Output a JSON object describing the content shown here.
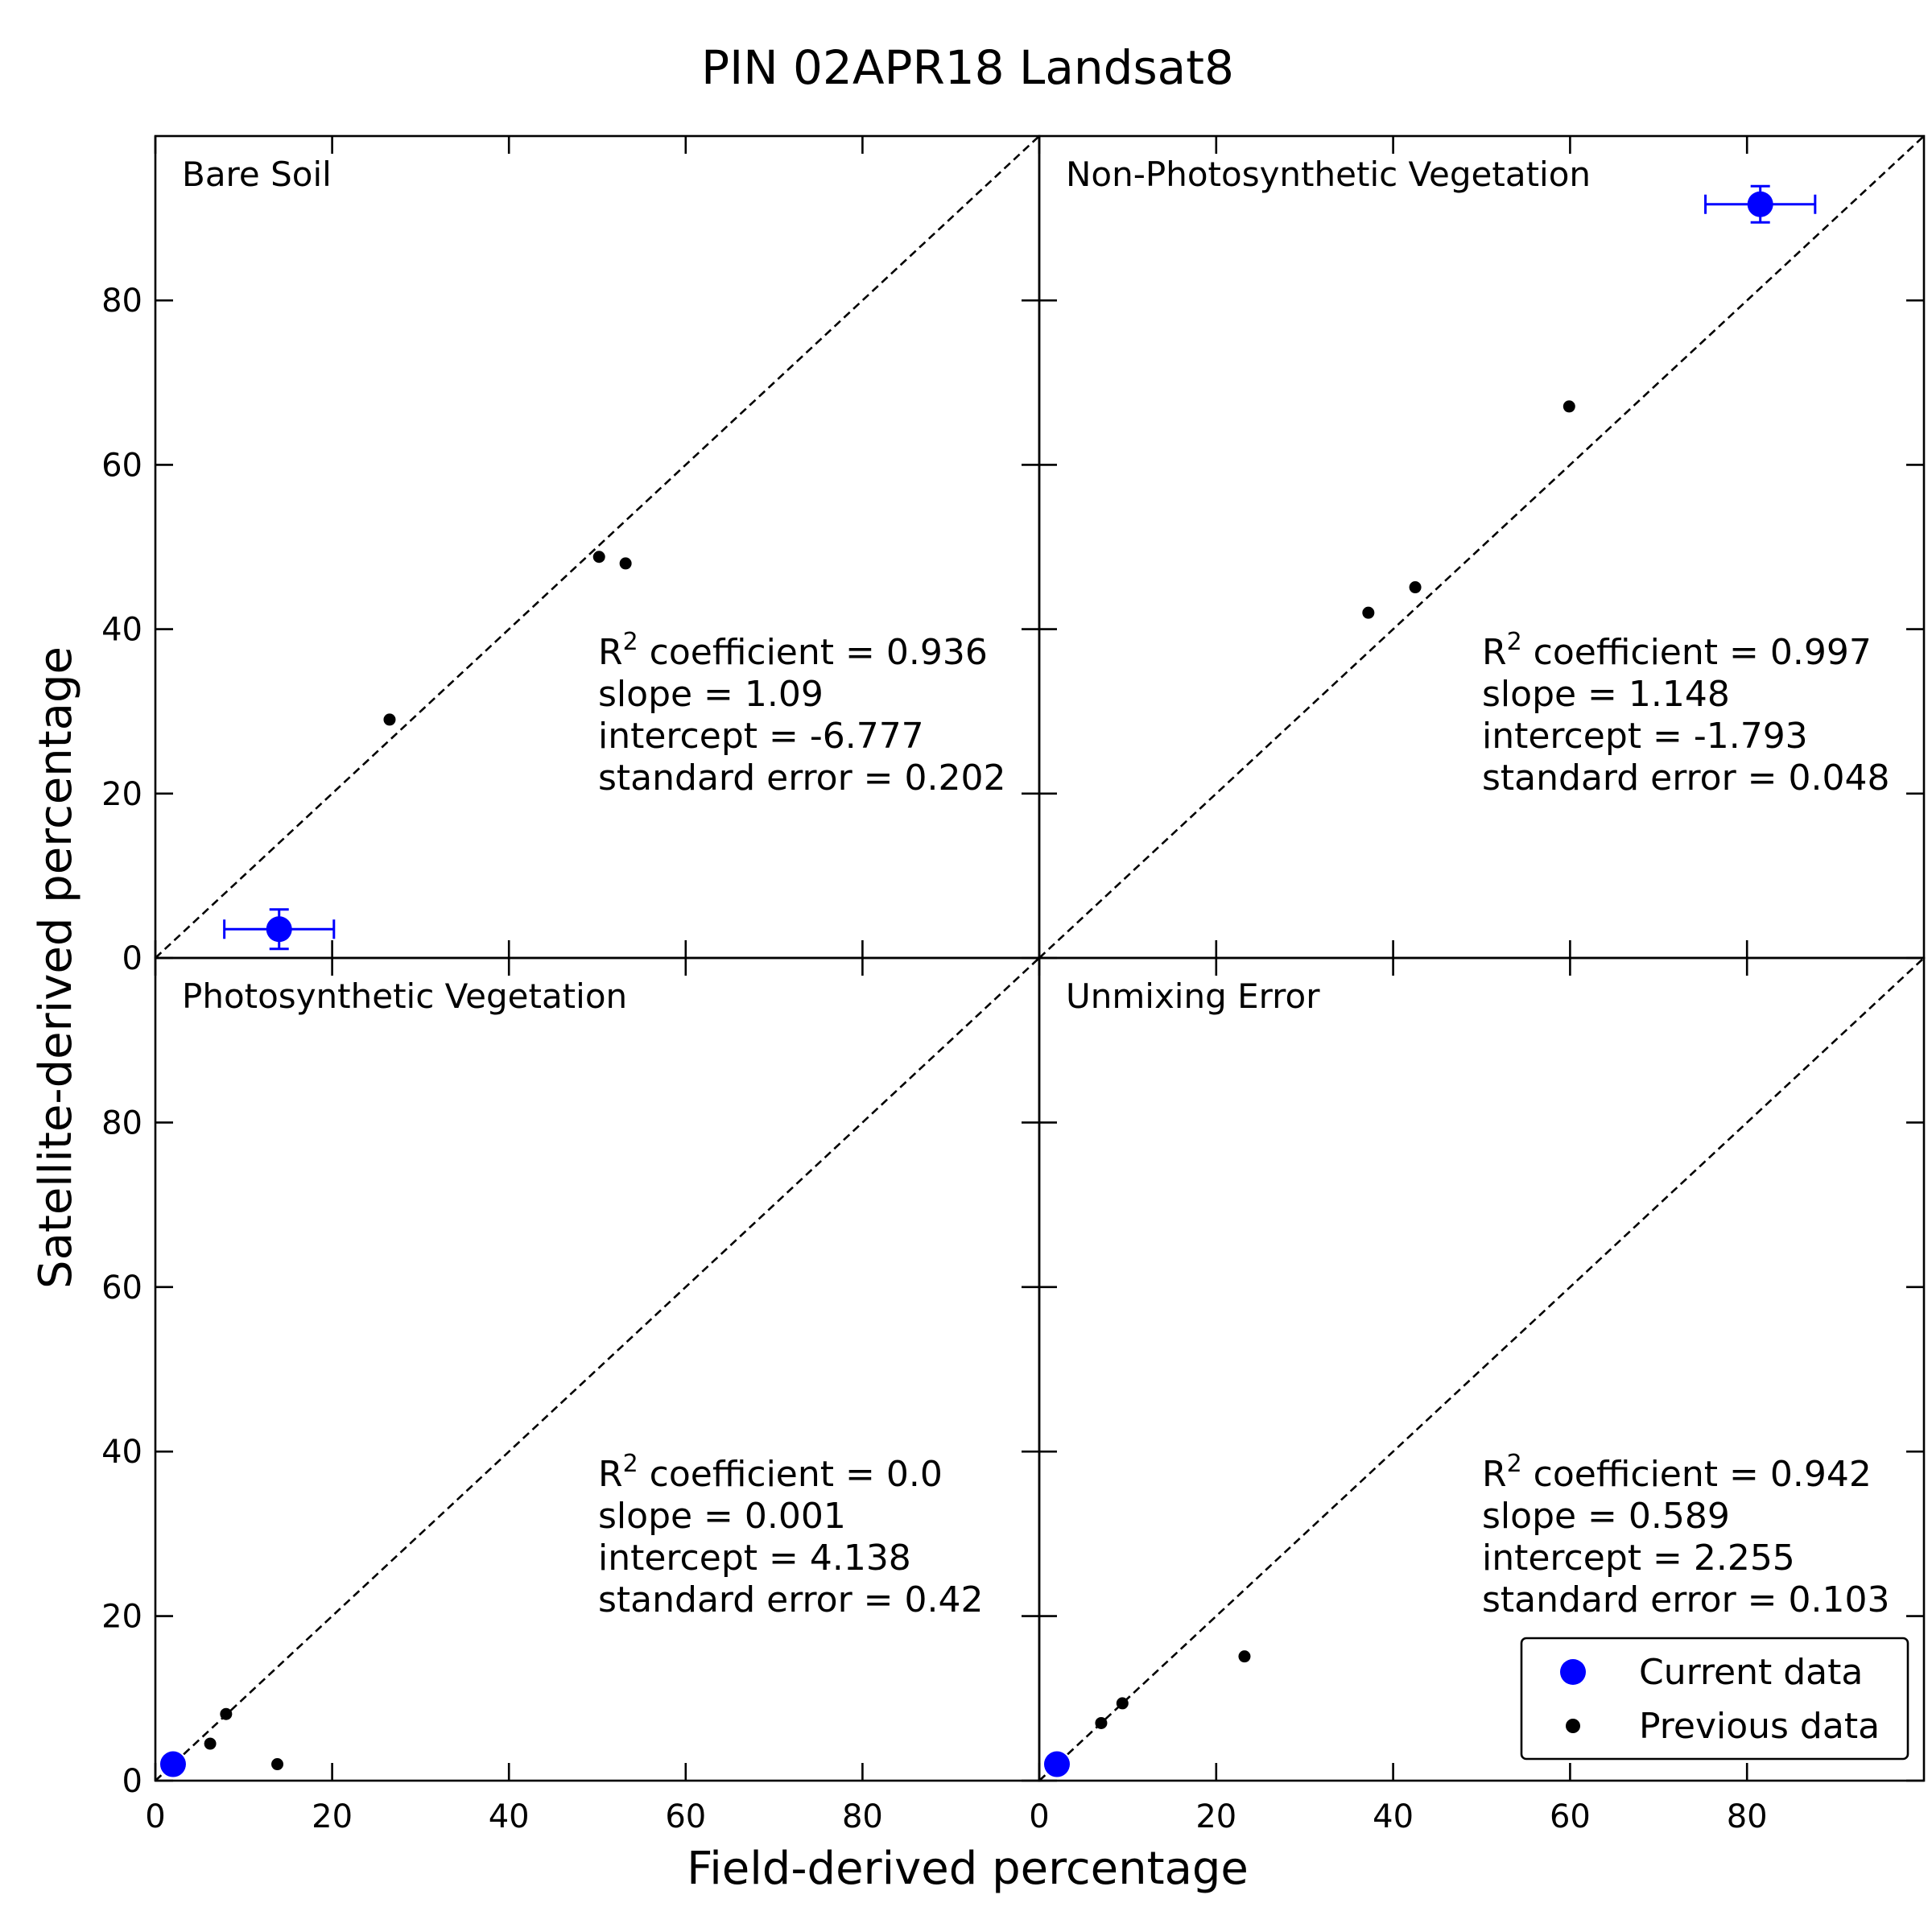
{
  "chart_data": {
    "type": "scatter",
    "title": "PIN  02APR18  Landsat8",
    "xlabel": "Field-derived percentage",
    "ylabel": "Satellite-derived percentage",
    "xlim": [
      0,
      100
    ],
    "ylim": [
      0,
      100
    ],
    "xticks": [
      0,
      20,
      40,
      60,
      80
    ],
    "yticks": [
      0,
      20,
      40,
      60,
      80
    ],
    "grid": false,
    "legend": {
      "placement": "bottom-right",
      "entries": [
        {
          "label": "Current data",
          "color": "#0000ff"
        },
        {
          "label": "Previous data",
          "color": "#000000"
        }
      ]
    },
    "panels": [
      {
        "label": "Bare Soil",
        "current": {
          "x": 14,
          "y": 3.5,
          "xerr": 6.2,
          "yerr": 2.4
        },
        "previous": [
          {
            "x": 26.5,
            "y": 29
          },
          {
            "x": 50.2,
            "y": 48.8
          },
          {
            "x": 53.2,
            "y": 48
          }
        ],
        "stats": {
          "r2_label": "R",
          "r2_sup": "2",
          "r2_text": " coefficient = 0.936",
          "slope": "slope = 1.09",
          "intercept": "intercept = -6.777",
          "std_error": "standard error = 0.202"
        }
      },
      {
        "label": "Non-Photosynthetic Vegetation",
        "current": {
          "x": 81.5,
          "y": 91.7,
          "xerr": 6.2,
          "yerr": 2.2
        },
        "previous": [
          {
            "x": 37.2,
            "y": 42
          },
          {
            "x": 42.5,
            "y": 45.1
          },
          {
            "x": 59.9,
            "y": 67.1
          }
        ],
        "stats": {
          "r2_label": "R",
          "r2_sup": "2",
          "r2_text": " coefficient = 0.997",
          "slope": "slope = 1.148",
          "intercept": "intercept = -1.793",
          "std_error": "standard error = 0.048"
        }
      },
      {
        "label": "Photosynthetic Vegetation",
        "current": {
          "x": 2,
          "y": 2
        },
        "previous": [
          {
            "x": 6.2,
            "y": 4.5
          },
          {
            "x": 8,
            "y": 8.1
          },
          {
            "x": 13.8,
            "y": 2
          }
        ],
        "stats": {
          "r2_label": "R",
          "r2_sup": "2",
          "r2_text": " coefficient = 0.0",
          "slope": "slope = 0.001",
          "intercept": "intercept = 4.138",
          "std_error": "standard error = 0.42"
        }
      },
      {
        "label": "Unmixing Error",
        "current": {
          "x": 2,
          "y": 2
        },
        "previous": [
          {
            "x": 7,
            "y": 7
          },
          {
            "x": 9.4,
            "y": 9.4
          },
          {
            "x": 23.2,
            "y": 15.1
          }
        ],
        "stats": {
          "r2_label": "R",
          "r2_sup": "2",
          "r2_text": " coefficient = 0.942",
          "slope": "slope = 0.589",
          "intercept": "intercept = 2.255",
          "std_error": "standard error = 0.103"
        }
      }
    ]
  }
}
